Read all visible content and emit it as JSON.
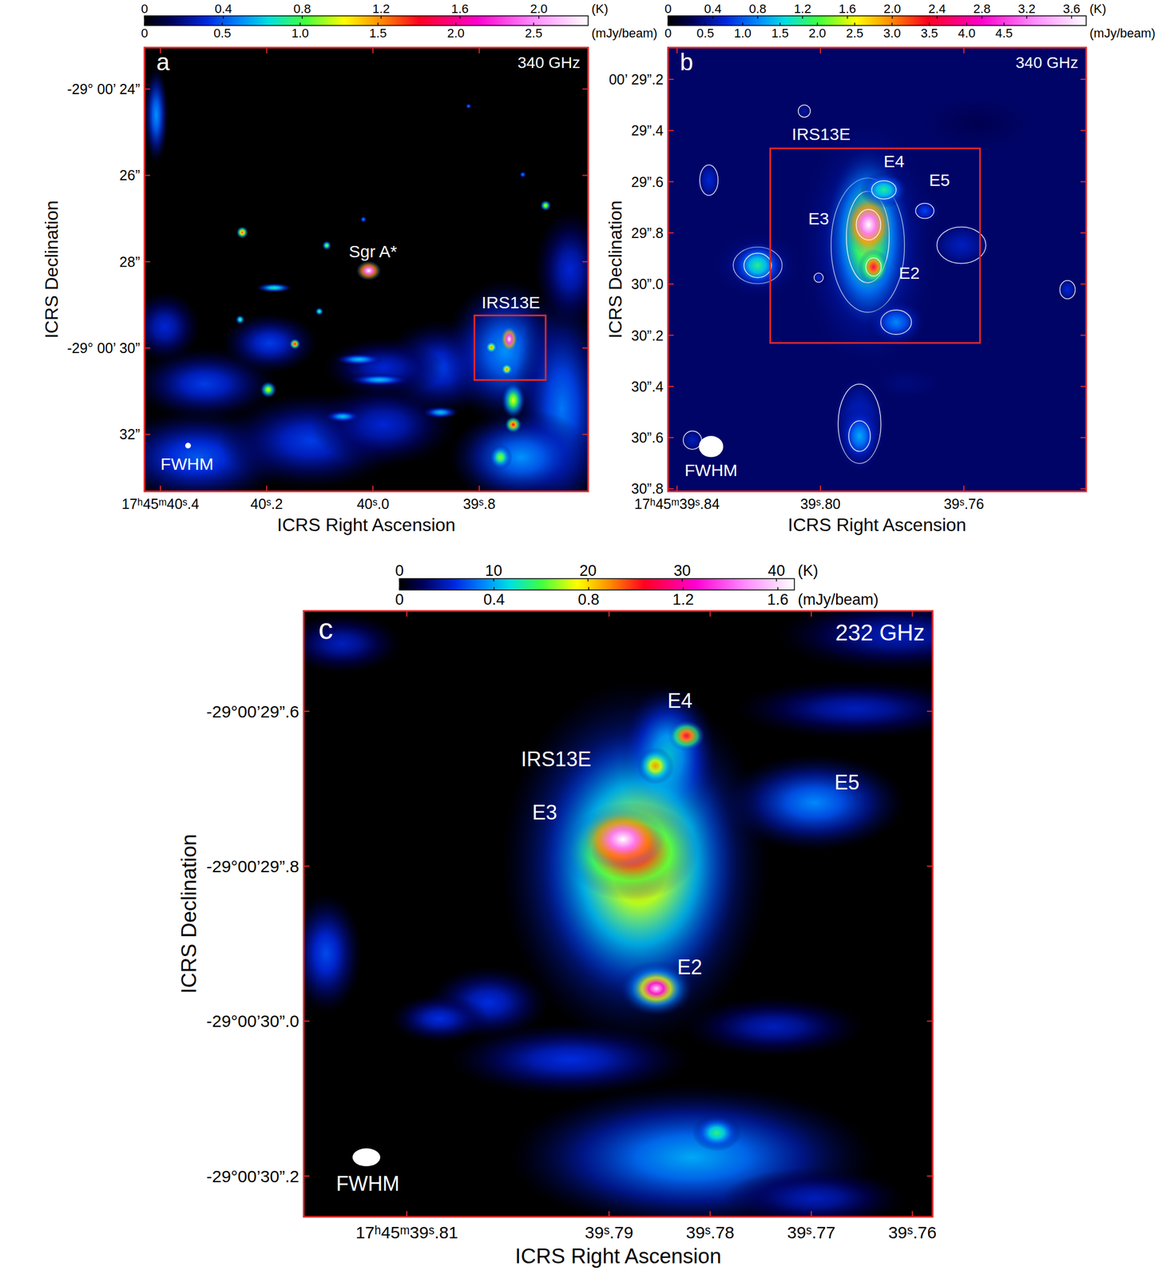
{
  "chart_data": [
    {
      "type": "image",
      "label": "a",
      "frequency": "340 GHz",
      "x_label": "ICRS Right Ascension",
      "y_label": "ICRS Declination",
      "xlim": [
        40.43,
        39.595
      ],
      "ylim": [
        23.04,
        33.32
      ],
      "xticks": [
        {
          "value": 40.4,
          "label": "17ʰ45ᵐ40ˢ.4"
        },
        {
          "value": 40.2,
          "label": "40ˢ.2"
        },
        {
          "value": 40.0,
          "label": "40ˢ.0"
        },
        {
          "value": 39.8,
          "label": "39ˢ.8"
        }
      ],
      "yticks": [
        {
          "value": 24,
          "label": "-29° 00’ 24”"
        },
        {
          "value": 26,
          "label": "26”"
        },
        {
          "value": 28,
          "label": "28”"
        },
        {
          "value": 30,
          "label": "-29° 00’ 30”"
        },
        {
          "value": 32,
          "label": "32”"
        }
      ],
      "colorbar": {
        "range": [
          0,
          2.25
        ],
        "ticks": [
          0,
          0.4,
          0.8,
          1.2,
          1.6,
          {
            "value": 2,
            "label": "2.0"
          }
        ],
        "unit": "(K)",
        "range2": [
          0,
          2.85
        ],
        "ticks2": [
          0,
          0.5,
          {
            "value": 1,
            "label": "1.0"
          },
          1.5,
          {
            "value": 2,
            "label": "2.0"
          },
          2.5
        ],
        "unit2": "(mJy/beam)"
      },
      "background": 0,
      "sources": [
        {
          "ra": 40.316,
          "dec": 30.831,
          "width": 0.183,
          "height": 1.13,
          "peak": 0.35
        },
        {
          "ra": 40.331,
          "dec": 32.529,
          "width": 0.229,
          "height": 1.51,
          "peak": 0.4
        },
        {
          "ra": 40.118,
          "dec": 32.152,
          "width": 0.229,
          "height": 1.51,
          "peak": 0.35
        },
        {
          "ra": 39.98,
          "dec": 31.774,
          "width": 0.183,
          "height": 1.32,
          "peak": 0.3
        },
        {
          "ra": 39.873,
          "dec": 30.453,
          "width": 0.153,
          "height": 1.51,
          "peak": 0.35
        },
        {
          "ra": 39.751,
          "dec": 30.076,
          "width": 0.153,
          "height": 2.26,
          "peak": 0.5
        },
        {
          "ra": 39.644,
          "dec": 31.397,
          "width": 0.122,
          "height": 3.77,
          "peak": 0.45
        },
        {
          "ra": 39.721,
          "dec": 32.529,
          "width": 0.183,
          "height": 1.51,
          "peak": 0.5
        },
        {
          "ra": 39.98,
          "dec": 30.453,
          "width": 0.153,
          "height": 0.94,
          "peak": 0.3
        },
        {
          "ra": 40.408,
          "dec": 24.604,
          "width": 0.031,
          "height": 1.51,
          "peak": 0.5
        },
        {
          "ra": 39.629,
          "dec": 28.189,
          "width": 0.092,
          "height": 1.89,
          "peak": 0.3
        },
        {
          "ra": 40.194,
          "dec": 29.887,
          "width": 0.122,
          "height": 0.94,
          "peak": 0.35
        },
        {
          "ra": 40.392,
          "dec": 29.51,
          "width": 0.092,
          "height": 1.13,
          "peak": 0.3
        },
        {
          "ra": 40.026,
          "dec": 30.264,
          "width": 0.061,
          "height": 0.19,
          "peak": 0.6
        },
        {
          "ra": 39.988,
          "dec": 30.736,
          "width": 0.076,
          "height": 0.19,
          "peak": 0.6
        },
        {
          "ra": 40.057,
          "dec": 31.586,
          "width": 0.046,
          "height": 0.19,
          "peak": 0.6
        },
        {
          "ra": 39.873,
          "dec": 31.491,
          "width": 0.046,
          "height": 0.19,
          "peak": 0.6
        },
        {
          "ra": 40.018,
          "dec": 27.019,
          "width": 0.009,
          "height": 0.11,
          "peak": 0.5
        },
        {
          "ra": 39.82,
          "dec": 24.396,
          "width": 0.008,
          "height": 0.09,
          "peak": 0.5
        },
        {
          "ra": 39.718,
          "dec": 25.981,
          "width": 0.009,
          "height": 0.11,
          "peak": 0.5
        },
        {
          "ra": 40.186,
          "dec": 28.604,
          "width": 0.046,
          "height": 0.15,
          "peak": 0.7
        },
        {
          "ra": 40.087,
          "dec": 27.623,
          "width": 0.012,
          "height": 0.15,
          "peak": 0.9
        },
        {
          "ra": 40.25,
          "dec": 29.34,
          "width": 0.012,
          "height": 0.15,
          "peak": 0.8
        },
        {
          "ra": 40.101,
          "dec": 29.151,
          "width": 0.011,
          "height": 0.13,
          "peak": 0.8
        },
        {
          "ra": 39.675,
          "dec": 26.698,
          "width": 0.014,
          "height": 0.17,
          "peak": 1.0
        },
        {
          "ra": 40.197,
          "dec": 30.963,
          "width": 0.021,
          "height": 0.26,
          "peak": 1.0
        },
        {
          "ra": 40.246,
          "dec": 27.321,
          "width": 0.015,
          "height": 0.19,
          "peak": 1.3
        },
        {
          "ra": 40.147,
          "dec": 29.906,
          "width": 0.014,
          "height": 0.17,
          "peak": 1.4
        },
        {
          "ra": 39.76,
          "dec": 32.529,
          "width": 0.03,
          "height": 0.4,
          "peak": 0.9
        },
        {
          "ra": 39.736,
          "dec": 31.208,
          "width": 0.03,
          "height": 0.57,
          "peak": 1.0
        },
        {
          "ra": 39.736,
          "dec": 31.774,
          "width": 0.021,
          "height": 0.26,
          "peak": 1.4
        },
        {
          "ra": 39.777,
          "dec": 29.982,
          "width": 0.015,
          "height": 0.19,
          "peak": 1.2
        },
        {
          "ra": 39.748,
          "dec": 30.491,
          "width": 0.015,
          "height": 0.19,
          "peak": 1.2
        },
        {
          "ra": 39.7435,
          "dec": 29.793,
          "width": 0.021,
          "height": 0.38,
          "peak": 2.3
        },
        {
          "ra": 40.008,
          "dec": 28.208,
          "width": 0.031,
          "height": 0.3,
          "peak": 2.4
        }
      ],
      "boxes": [
        {
          "ra": [
            39.809,
            39.675
          ],
          "dec": [
            29.245,
            30.74
          ]
        }
      ],
      "beam": {
        "ra": 40.348,
        "dec": 32.26,
        "width": 0.0107,
        "height": 0.13
      },
      "annotations": [
        {
          "text": "Sgr A*",
          "ra": 40.0,
          "dec": 27.755
        },
        {
          "text": "IRS13E",
          "ra": 39.7404,
          "dec": 28.944
        },
        {
          "text": "FWHM",
          "ra": 40.35,
          "dec": 32.68
        }
      ]
    },
    {
      "type": "image",
      "label": "b",
      "frequency": "340 GHz",
      "x_label": "ICRS Right Ascension",
      "y_label": "ICRS Declination",
      "xlim": [
        39.8425,
        39.7259
      ],
      "ylim": [
        29.076,
        30.81
      ],
      "xticks": [
        {
          "value": 39.84,
          "label": "17ʰ45ᵐ39ˢ.84"
        },
        {
          "value": 39.8,
          "label": "39ˢ.80"
        },
        {
          "value": 39.76,
          "label": "39ˢ.76"
        }
      ],
      "yticks": [
        {
          "value": 29.2,
          "label": "00’ 29”.2"
        },
        {
          "value": 29.4,
          "label": "29”.4"
        },
        {
          "value": 29.6,
          "label": "29”.6"
        },
        {
          "value": 29.8,
          "label": "29”.8"
        },
        {
          "value": 30.0,
          "label": "30”.0"
        },
        {
          "value": 30.2,
          "label": "30”.2"
        },
        {
          "value": 30.4,
          "label": "30”.4"
        },
        {
          "value": 30.6,
          "label": "30”.6"
        },
        {
          "value": 30.8,
          "label": "30”.8"
        }
      ],
      "colorbar": {
        "range": [
          0,
          3.73
        ],
        "ticks": [
          0,
          0.4,
          0.8,
          1.2,
          1.6,
          {
            "value": 2,
            "label": "2.0"
          },
          2.4,
          2.8,
          3.2,
          3.6
        ],
        "unit": "(K)",
        "range2": [
          0,
          5.6
        ],
        "ticks2": [
          0,
          0.5,
          {
            "value": 1,
            "label": "1.0"
          },
          1.5,
          {
            "value": 2,
            "label": "2.0"
          },
          2.5,
          {
            "value": 3,
            "label": "3.0"
          },
          3.5,
          {
            "value": 4,
            "label": "4.0"
          },
          4.5
        ],
        "unit2": "(mJy/beam)"
      },
      "background": 0.25,
      "sources": [
        {
          "ra": 39.8016,
          "dec": 30.324,
          "width": 0.1137,
          "height": 0.953,
          "peak": 0.25
        },
        {
          "ra": 39.7561,
          "dec": 29.371,
          "width": 0.0682,
          "height": 0.476,
          "peak": 0.2
        },
        {
          "ra": 39.7766,
          "dec": 30.387,
          "width": 0.0455,
          "height": 0.254,
          "peak": 0.3
        },
        {
          "ra": 39.7868,
          "dec": 29.848,
          "width": 0.0273,
          "height": 0.699,
          "peak": 0.7
        },
        {
          "ra": 39.7891,
          "dec": 30.546,
          "width": 0.0159,
          "height": 0.413,
          "peak": 0.5
        },
        {
          "ra": 39.8175,
          "dec": 29.927,
          "width": 0.0182,
          "height": 0.19,
          "peak": 0.6
        },
        {
          "ra": 39.7607,
          "dec": 29.848,
          "width": 0.0182,
          "height": 0.19,
          "peak": 0.45
        },
        {
          "ra": 39.8311,
          "dec": 29.594,
          "width": 0.0068,
          "height": 0.159,
          "peak": 0.5
        },
        {
          "ra": 39.8045,
          "dec": 29.324,
          "width": 0.0045,
          "height": 0.064,
          "peak": 0.4
        },
        {
          "ra": 39.7311,
          "dec": 30.022,
          "width": 0.0057,
          "height": 0.095,
          "peak": 0.5
        },
        {
          "ra": 39.8005,
          "dec": 29.975,
          "width": 0.0034,
          "height": 0.048,
          "peak": 0.5
        },
        {
          "ra": 39.8357,
          "dec": 30.61,
          "width": 0.0068,
          "height": 0.095,
          "peak": 0.45
        },
        {
          "ra": 39.7709,
          "dec": 29.714,
          "width": 0.0068,
          "height": 0.079,
          "peak": 0.6
        },
        {
          "ra": 39.7789,
          "dec": 30.149,
          "width": 0.0114,
          "height": 0.127,
          "peak": 0.8
        },
        {
          "ra": 39.7891,
          "dec": 30.594,
          "width": 0.008,
          "height": 0.159,
          "peak": 0.9
        },
        {
          "ra": 39.8175,
          "dec": 29.927,
          "width": 0.0102,
          "height": 0.127,
          "peak": 1.2
        },
        {
          "ra": 39.7868,
          "dec": 29.816,
          "width": 0.0159,
          "height": 0.476,
          "peak": 1.6
        },
        {
          "ra": 39.7823,
          "dec": 29.632,
          "width": 0.0091,
          "height": 0.095,
          "peak": 1.2
        },
        {
          "ra": 39.7852,
          "dec": 29.933,
          "width": 0.0057,
          "height": 0.095,
          "peak": 2.5
        },
        {
          "ra": 39.7866,
          "dec": 29.768,
          "width": 0.0091,
          "height": 0.159,
          "peak": 4.0
        }
      ],
      "boxes": [
        {
          "ra": [
            39.814,
            39.7555
          ],
          "dec": [
            29.47,
            30.23
          ]
        }
      ],
      "beam": {
        "ra": 39.8305,
        "dec": 30.635,
        "width": 0.0068,
        "height": 0.0825
      },
      "annotations": [
        {
          "text": "IRS13E",
          "ra": 39.7998,
          "dec": 29.413
        },
        {
          "text": "E4",
          "ra": 39.7795,
          "dec": 29.521
        },
        {
          "text": "E5",
          "ra": 39.7668,
          "dec": 29.594
        },
        {
          "text": "E3",
          "ra": 39.8005,
          "dec": 29.743
        },
        {
          "text": "E2",
          "ra": 39.7752,
          "dec": 29.956
        },
        {
          "text": "FWHM",
          "ra": 39.8305,
          "dec": 30.727
        }
      ]
    },
    {
      "type": "image",
      "label": "c",
      "frequency": "232 GHz",
      "x_label": "ICRS Right Ascension",
      "y_label": "ICRS Declination",
      "xlim": [
        39.8202,
        39.758
      ],
      "ylim": [
        29.4705,
        30.2526
      ],
      "xticks": [
        {
          "value": 39.81,
          "label": "17ʰ45ᵐ39ˢ.81"
        },
        {
          "value": 39.79,
          "label": "39ˢ.79"
        },
        {
          "value": 39.78,
          "label": "39ˢ.78"
        },
        {
          "value": 39.77,
          "label": "39ˢ.77"
        },
        {
          "value": 39.76,
          "label": "39ˢ.76"
        }
      ],
      "yticks": [
        {
          "value": 29.6,
          "label": "-29°00’29”.6"
        },
        {
          "value": 29.8,
          "label": "-29°00’29”.8"
        },
        {
          "value": 30.0,
          "label": "-29°00’30”.0"
        },
        {
          "value": 30.2,
          "label": "-29°00’30”.2"
        }
      ],
      "colorbar": {
        "range": [
          0,
          41.9
        ],
        "ticks": [
          0,
          10,
          20,
          30,
          40
        ],
        "unit": "(K)",
        "range2": [
          0,
          1.67
        ],
        "ticks2": [
          0,
          0.4,
          0.8,
          1.2,
          1.6
        ],
        "unit2": "(mJy/beam)"
      },
      "background": 0,
      "sources": [
        {
          "ra": 39.78178,
          "dec": 30.1758,
          "width": 0.0242,
          "height": 0.1263,
          "peak": 10
        },
        {
          "ra": 39.818,
          "dec": 29.9126,
          "width": 0.00484,
          "height": 0.1053,
          "peak": 7
        },
        {
          "ra": 39.80193,
          "dec": 29.9758,
          "width": 0.00806,
          "height": 0.0632,
          "peak": 6
        },
        {
          "ra": 39.80677,
          "dec": 29.9968,
          "width": 0.00645,
          "height": 0.0421,
          "peak": 6
        },
        {
          "ra": 39.76163,
          "dec": 29.5021,
          "width": 0.0161,
          "height": 0.0632,
          "peak": 5
        },
        {
          "ra": 39.76566,
          "dec": 29.5968,
          "width": 0.0161,
          "height": 0.0526,
          "peak": 5
        },
        {
          "ra": 39.81644,
          "dec": 29.5126,
          "width": 0.00806,
          "height": 0.0526,
          "peak": 5
        },
        {
          "ra": 39.79387,
          "dec": 30.0495,
          "width": 0.0161,
          "height": 0.0632,
          "peak": 6
        },
        {
          "ra": 39.77372,
          "dec": 30.0074,
          "width": 0.0121,
          "height": 0.0526,
          "peak": 5
        },
        {
          "ra": 39.76969,
          "dec": 30.2284,
          "width": 0.0121,
          "height": 0.0526,
          "peak": 5
        },
        {
          "ra": 39.76969,
          "dec": 29.7179,
          "width": 0.0121,
          "height": 0.0842,
          "peak": 9
        },
        {
          "ra": 39.77936,
          "dec": 30.1442,
          "width": 0.00322,
          "height": 0.0316,
          "peak": 14
        },
        {
          "ra": 39.78742,
          "dec": 29.7968,
          "width": 0.0177,
          "height": 0.3158,
          "peak": 12
        },
        {
          "ra": 39.7842,
          "dec": 29.66,
          "width": 0.00645,
          "height": 0.1263,
          "peak": 12
        },
        {
          "ra": 39.78702,
          "dec": 29.7968,
          "width": 0.0129,
          "height": 0.2316,
          "peak": 22
        },
        {
          "ra": 39.78541,
          "dec": 29.6705,
          "width": 0.00242,
          "height": 0.0316,
          "peak": 22
        },
        {
          "ra": 39.78234,
          "dec": 29.6316,
          "width": 0.00242,
          "height": 0.0263,
          "peak": 28
        },
        {
          "ra": 39.78782,
          "dec": 29.781,
          "width": 0.00887,
          "height": 0.0842,
          "peak": 30
        },
        {
          "ra": 39.78533,
          "dec": 29.9579,
          "width": 0.00484,
          "height": 0.0474,
          "peak": 18
        },
        {
          "ra": 39.78533,
          "dec": 29.9579,
          "width": 0.00322,
          "height": 0.0316,
          "peak": 40
        },
        {
          "ra": 39.78863,
          "dec": 29.7653,
          "width": 0.00564,
          "height": 0.0526,
          "peak": 45
        }
      ],
      "boxes": [],
      "beam": {
        "ra": 39.814,
        "dec": 30.1758,
        "width": 0.00274,
        "height": 0.023
      },
      "annotations": [
        {
          "text": "E4",
          "ra": 39.78299,
          "dec": 29.5863
        },
        {
          "text": "IRS13E",
          "ra": 39.79524,
          "dec": 29.6621
        },
        {
          "text": "E5",
          "ra": 39.76647,
          "dec": 29.6916
        },
        {
          "text": "E3",
          "ra": 39.79637,
          "dec": 29.7305
        },
        {
          "text": "E2",
          "ra": 39.78202,
          "dec": 29.9305
        },
        {
          "text": "FWHM",
          "ra": 39.81386,
          "dec": 30.2095
        }
      ]
    }
  ]
}
